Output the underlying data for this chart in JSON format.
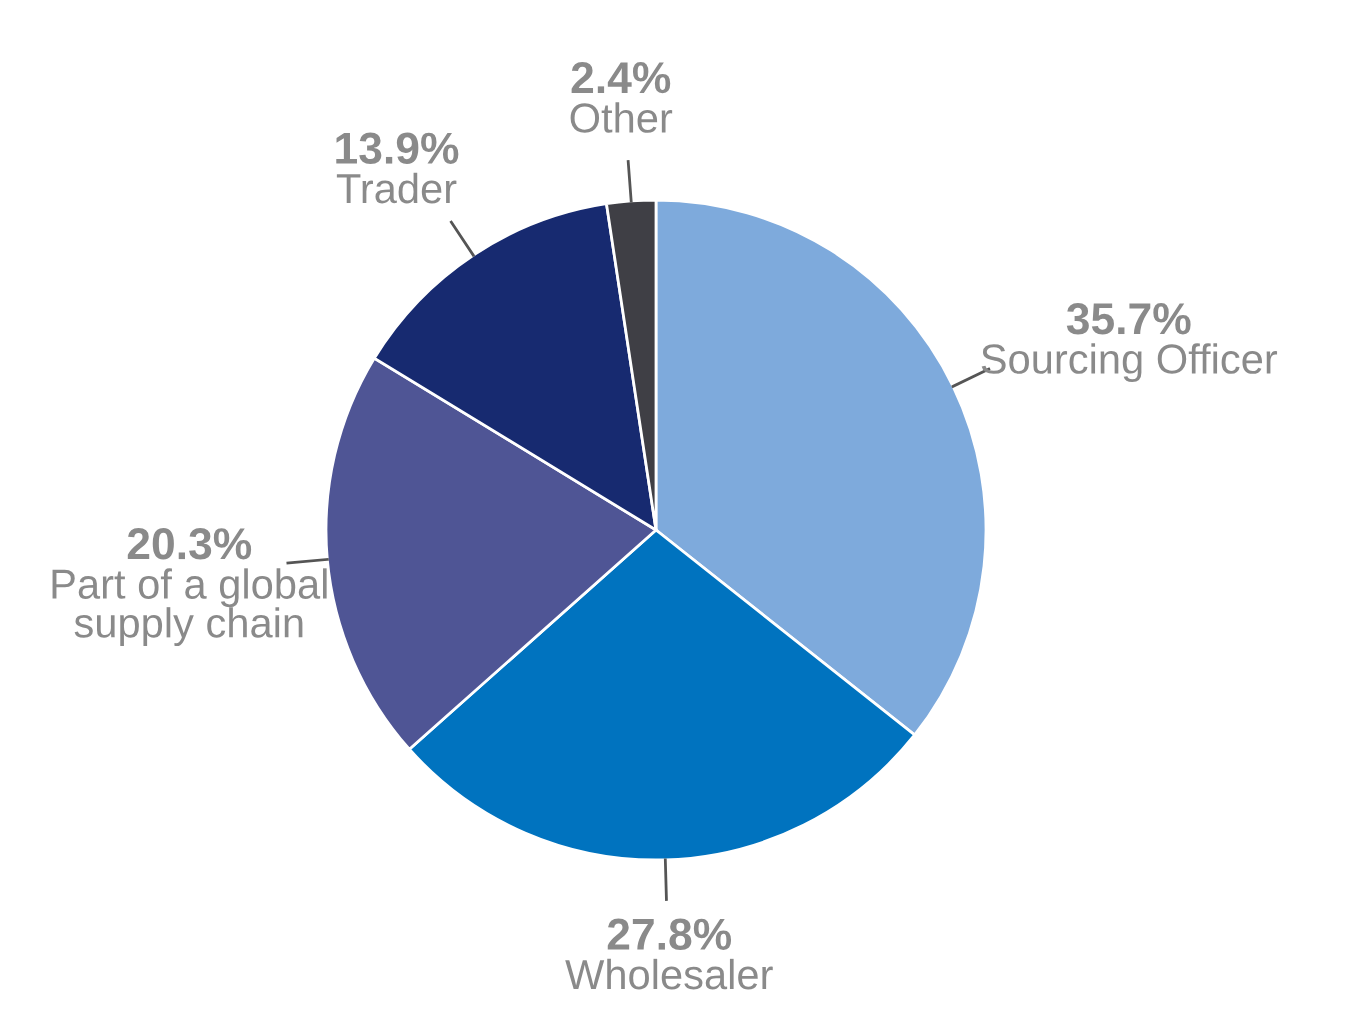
{
  "chart_data": {
    "type": "pie",
    "categories": [
      "Sourcing Officer",
      "Wholesaler",
      "Part of a global\nsupply chain",
      "Trader",
      "Other"
    ],
    "values": [
      35.7,
      27.8,
      20.3,
      13.9,
      2.4
    ],
    "value_labels": [
      "35.7%",
      "27.8%",
      "20.3%",
      "13.9%",
      "2.4%"
    ],
    "colors": [
      "#7eaadc",
      "#0073bf",
      "#4f5595",
      "#172a70",
      "#3f3f45"
    ],
    "legend": false
  }
}
